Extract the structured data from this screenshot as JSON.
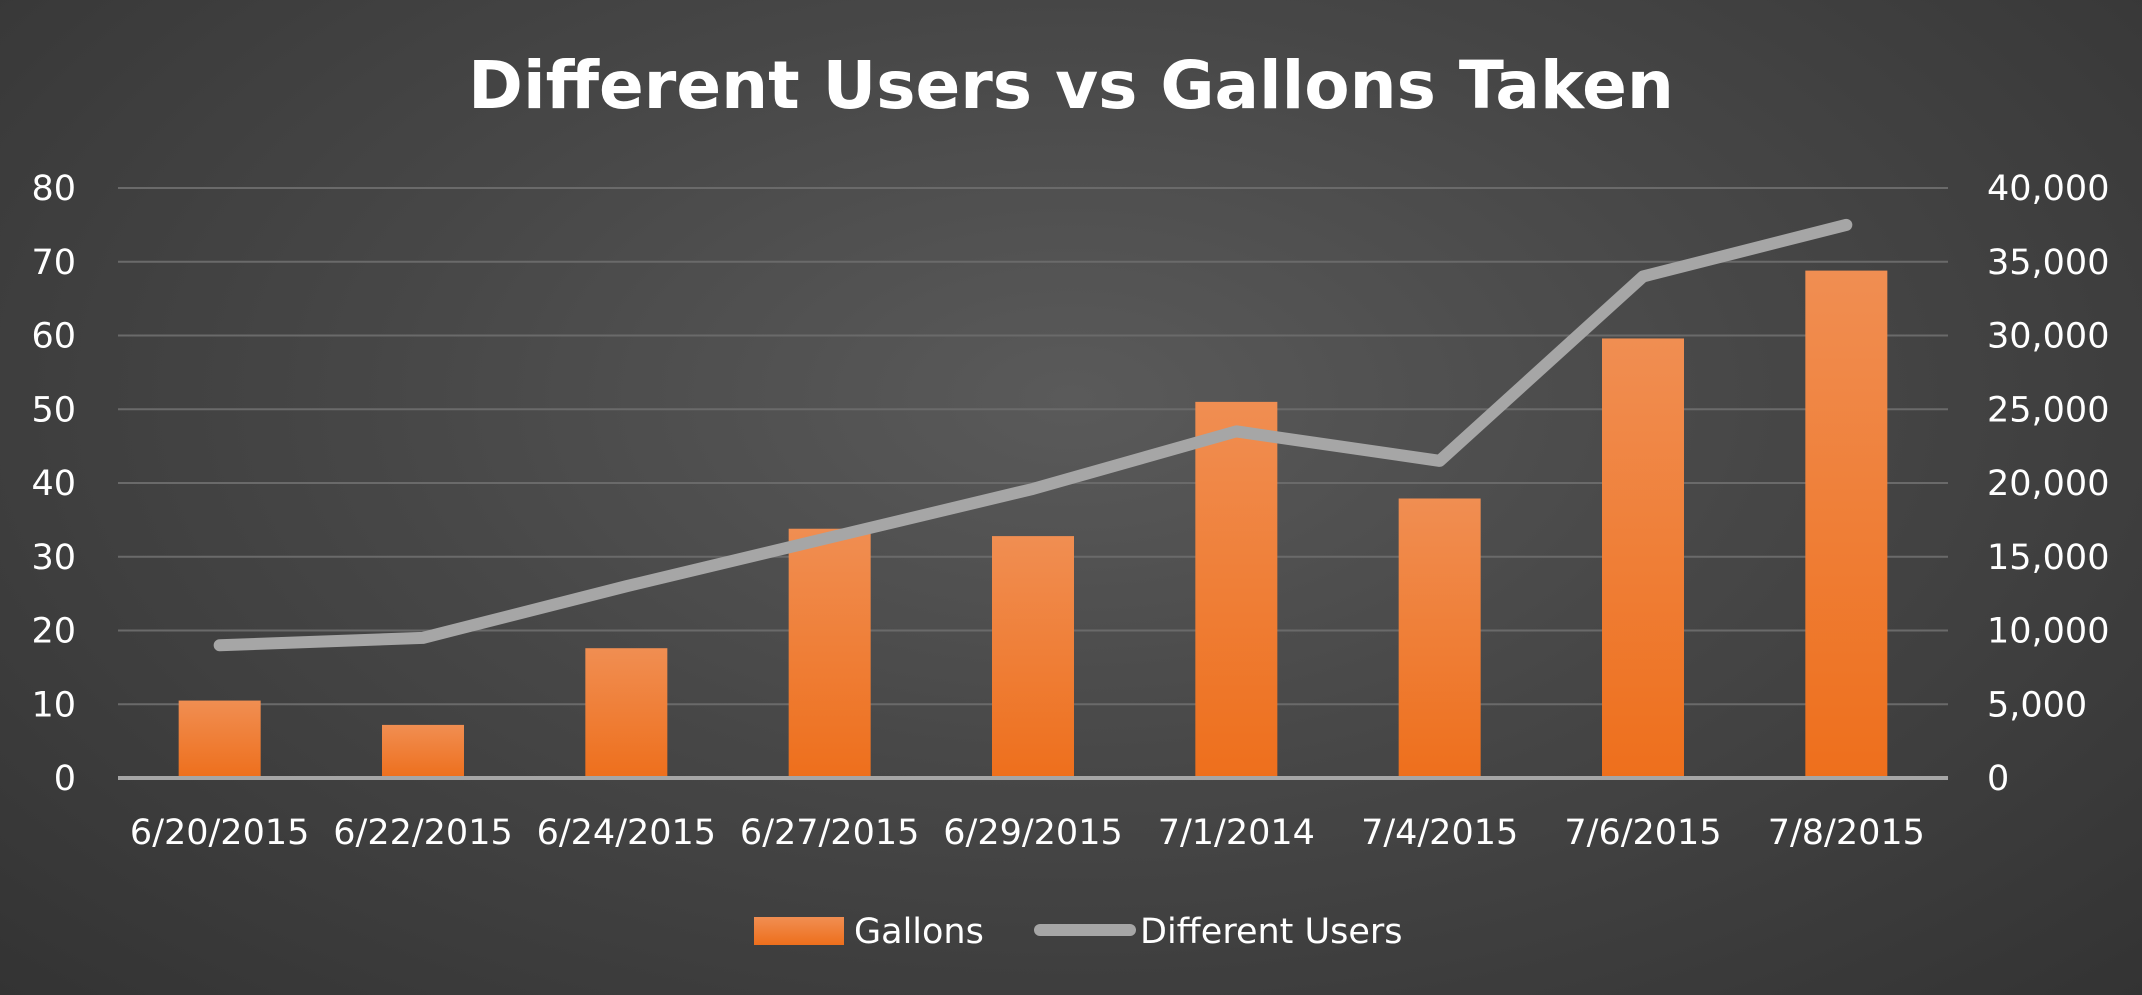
{
  "chart_data": {
    "type": "bar",
    "title": "Different Users vs Gallons Taken",
    "xlabel": "",
    "ylabel": "",
    "categories": [
      "6/20/2015",
      "6/22/2015",
      "6/24/2015",
      "6/27/2015",
      "6/29/2015",
      "7/1/2014",
      "7/4/2015",
      "7/6/2015",
      "7/8/2015"
    ],
    "series": [
      {
        "name": "Gallons",
        "type": "bar",
        "axis": "left",
        "color": "#f07b2a",
        "values": [
          10.5,
          7.2,
          17.6,
          33.8,
          32.8,
          51.0,
          37.9,
          59.6,
          68.8
        ]
      },
      {
        "name": "Different Users",
        "type": "line",
        "axis": "right",
        "color": "#a6a6a6",
        "values": [
          9000,
          9500,
          13000,
          16300,
          19600,
          23500,
          21500,
          34000,
          37500
        ]
      }
    ],
    "ylim": [
      0,
      80
    ],
    "y_ticks": [
      "0",
      "10",
      "20",
      "30",
      "40",
      "50",
      "60",
      "70",
      "80"
    ],
    "y2lim": [
      0,
      40000
    ],
    "y2_ticks": [
      "0",
      "5,000",
      "10,000",
      "15,000",
      "20,000",
      "25,000",
      "30,000",
      "35,000",
      "40,000"
    ],
    "grid": true,
    "legend_position": "bottom"
  }
}
